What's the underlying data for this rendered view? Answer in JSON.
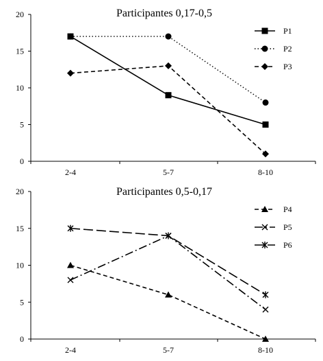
{
  "chart_data": [
    {
      "type": "line",
      "title": "Participantes 0,17-0,5",
      "categories": [
        "2-4",
        "5-7",
        "8-10"
      ],
      "ylim": [
        0,
        20
      ],
      "yticks": [
        0,
        5,
        10,
        15,
        20
      ],
      "grid": false,
      "legend_position": "top-right",
      "series": [
        {
          "name": "P1",
          "values": [
            17,
            9,
            5
          ],
          "marker": "square",
          "dash": "solid"
        },
        {
          "name": "P2",
          "values": [
            17,
            17,
            8
          ],
          "marker": "circle",
          "dash": "dotted"
        },
        {
          "name": "P3",
          "values": [
            12,
            13,
            1
          ],
          "marker": "diamond",
          "dash": "dashed"
        }
      ]
    },
    {
      "type": "line",
      "title": "Participantes 0,5-0,17",
      "categories": [
        "2-4",
        "5-7",
        "8-10"
      ],
      "ylim": [
        0,
        20
      ],
      "yticks": [
        0,
        5,
        10,
        15,
        20
      ],
      "grid": false,
      "legend_position": "top-right",
      "series": [
        {
          "name": "P4",
          "values": [
            10,
            6,
            0
          ],
          "marker": "triangle",
          "dash": "dashed"
        },
        {
          "name": "P5",
          "values": [
            8,
            14,
            4
          ],
          "marker": "x",
          "dash": "dashdot"
        },
        {
          "name": "P6",
          "values": [
            15,
            14,
            6
          ],
          "marker": "asterisk",
          "dash": "longdash"
        }
      ]
    }
  ]
}
